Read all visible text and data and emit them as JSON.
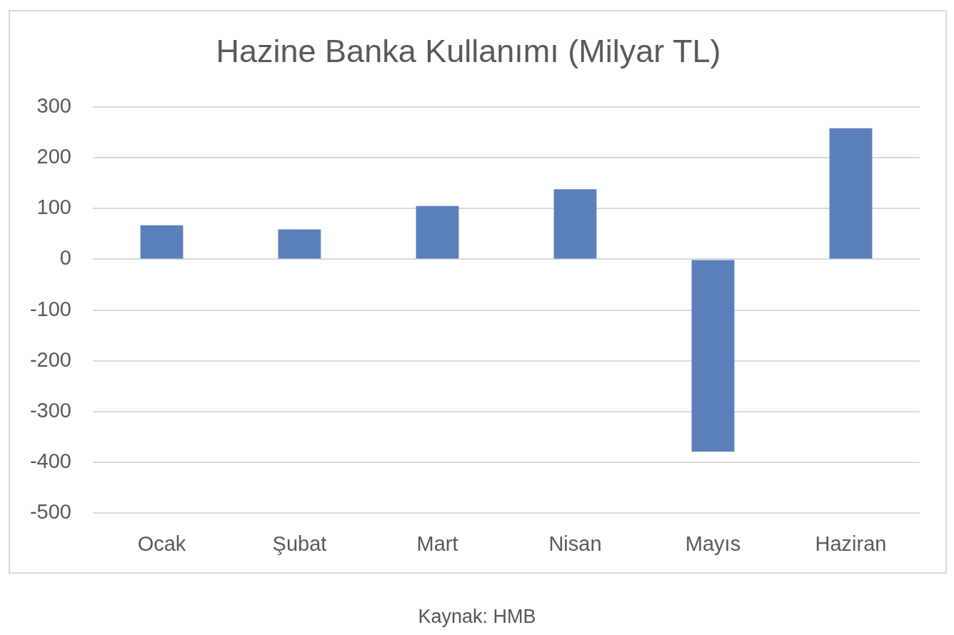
{
  "chart_data": {
    "type": "bar",
    "title": "Hazine Banka Kullanımı (Milyar TL)",
    "categories": [
      "Ocak",
      "Şubat",
      "Mart",
      "Nisan",
      "Mayıs",
      "Haziran"
    ],
    "values": [
      67,
      59,
      105,
      138,
      -379,
      258
    ],
    "color": "#5b7fbb",
    "ylim": [
      -500,
      300
    ],
    "yticks": [
      -500,
      -400,
      -300,
      -200,
      -100,
      0,
      100,
      200,
      300
    ],
    "grid": "y",
    "annotations": [
      "Kaynak: HMB"
    ]
  }
}
